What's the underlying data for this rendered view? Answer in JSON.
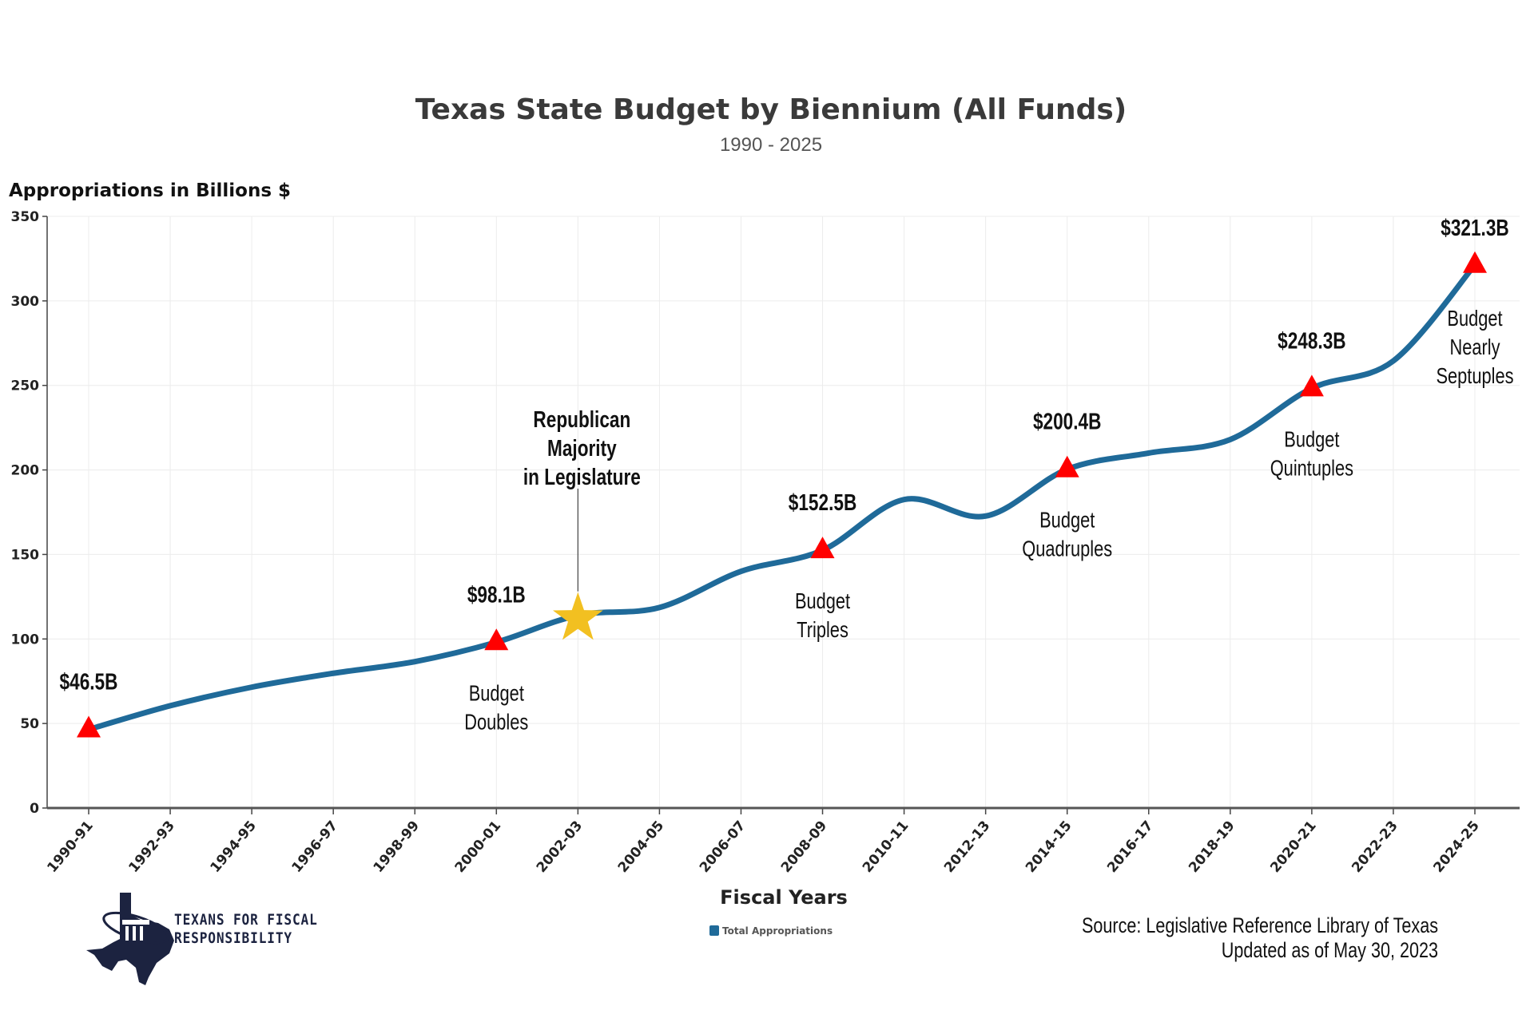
{
  "chart_data": {
    "type": "line",
    "title": "Texas State Budget by Biennium (All Funds)",
    "subtitle": "1990 - 2025",
    "ylabel": "Appropriations in Billions $",
    "xlabel": "Fiscal Years",
    "ylim": [
      0,
      350
    ],
    "yticks": [
      0,
      50,
      100,
      150,
      200,
      250,
      300,
      350
    ],
    "grid": true,
    "legend_position": "bottom",
    "categories": [
      "1990-91",
      "1992-93",
      "1994-95",
      "1996-97",
      "1998-99",
      "2000-01",
      "2002-03",
      "2004-05",
      "2006-07",
      "2008-09",
      "2010-11",
      "2012-13",
      "2014-15",
      "2016-17",
      "2018-19",
      "2020-21",
      "2022-23",
      "2024-25"
    ],
    "series": [
      {
        "name": "Total Appropriations",
        "color": "#1f6a99",
        "values": [
          46.5,
          60.5,
          71.5,
          79.7,
          86.6,
          98.1,
          114.0,
          118.6,
          140.0,
          152.5,
          182.5,
          172.7,
          200.4,
          210.0,
          218.0,
          248.3,
          264.5,
          321.3
        ]
      }
    ],
    "annotations": [
      {
        "category": "1990-91",
        "label": "$46.5B",
        "note": []
      },
      {
        "category": "2000-01",
        "label": "$98.1B",
        "note": [
          "Budget",
          "Doubles"
        ]
      },
      {
        "category": "2008-09",
        "label": "$152.5B",
        "note": [
          "Budget",
          "Triples"
        ]
      },
      {
        "category": "2014-15",
        "label": "$200.4B",
        "note": [
          "Budget",
          "Quadruples"
        ]
      },
      {
        "category": "2020-21",
        "label": "$248.3B",
        "note": [
          "Budget",
          "Quintuples"
        ]
      },
      {
        "category": "2024-25",
        "label": "$321.3B",
        "note": [
          "Budget",
          "Nearly",
          "Septuples"
        ]
      }
    ],
    "marker_color": "#ff0000",
    "event": {
      "category": "2002-03",
      "marker": "star",
      "color": "#f2c021",
      "text": [
        "Republican",
        "Majority",
        "in Legislature"
      ]
    }
  },
  "source": {
    "line1": "Source: Legislative Reference Library of Texas",
    "line2": "Updated as of  May 30, 2023"
  },
  "logo": {
    "line1": "TEXANS FOR FISCAL",
    "line2": "RESPONSIBILITY",
    "color": "#1c2340"
  }
}
